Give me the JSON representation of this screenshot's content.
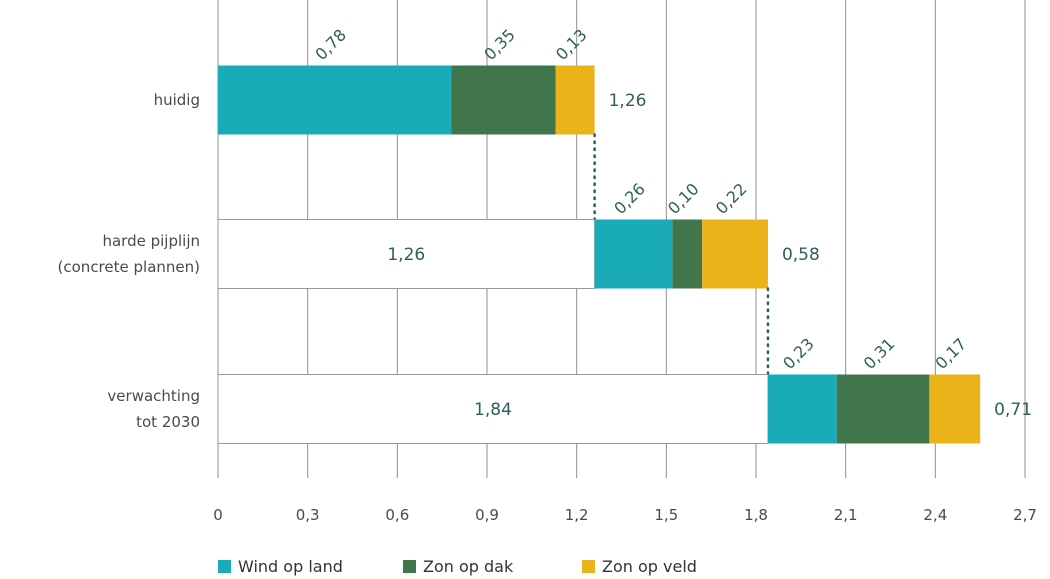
{
  "chart_data": {
    "type": "bar",
    "orientation": "horizontal",
    "stacked": true,
    "categories": [
      [
        "huidig"
      ],
      [
        "harde pijplijn",
        "(concrete plannen)"
      ],
      [
        "verwachting",
        "tot 2030"
      ]
    ],
    "base": {
      "values": [
        0,
        1.26,
        1.84
      ],
      "labels": [
        "",
        "1,26",
        "1,84"
      ]
    },
    "series": [
      {
        "name": "Wind op land",
        "color": "#1aabb8",
        "values": [
          0.78,
          0.26,
          0.23
        ],
        "labels": [
          "0,78",
          "0,26",
          "0,23"
        ]
      },
      {
        "name": "Zon op dak",
        "color": "#41764d",
        "values": [
          0.35,
          0.1,
          0.31
        ],
        "labels": [
          "0,35",
          "0,10",
          "0,31"
        ]
      },
      {
        "name": "Zon op veld",
        "color": "#ebb31a",
        "values": [
          0.13,
          0.22,
          0.17
        ],
        "labels": [
          "0,13",
          "0,22",
          "0,17"
        ]
      }
    ],
    "totals": [
      "1,26",
      "0,58",
      "0,71"
    ],
    "xlim": [
      0,
      2.7
    ],
    "xticks": [
      0,
      0.3,
      0.6,
      0.9,
      1.2,
      1.5,
      1.8,
      2.1,
      2.4,
      2.7
    ],
    "xtick_labels": [
      "0",
      "0,3",
      "0,6",
      "0,9",
      "1,2",
      "1,5",
      "1,8",
      "2,1",
      "2,4",
      "2,7"
    ],
    "grid": true,
    "legend_position": "bottom",
    "connector_style": "dotted"
  }
}
